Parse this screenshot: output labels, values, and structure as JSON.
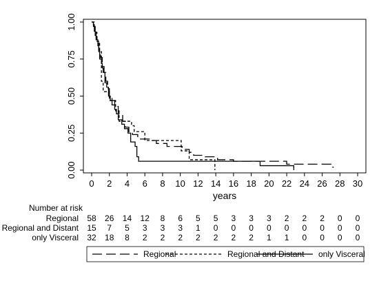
{
  "chart_data": {
    "type": "line",
    "title": "",
    "xlabel": "years",
    "ylabel": "",
    "xlim": [
      0,
      30
    ],
    "ylim": [
      0,
      1
    ],
    "x_ticks": [
      0,
      2,
      4,
      6,
      8,
      10,
      12,
      14,
      16,
      18,
      20,
      22,
      24,
      26,
      28,
      30
    ],
    "y_ticks": [
      "0.00",
      "0.25",
      "0.50",
      "0.75",
      "1.00"
    ],
    "grid": false,
    "legend_position": "bottom",
    "series": [
      {
        "name": "Regional",
        "style": "long-dash",
        "steps": [
          [
            0,
            1.0
          ],
          [
            0.2,
            0.98
          ],
          [
            0.3,
            0.95
          ],
          [
            0.5,
            0.9
          ],
          [
            0.6,
            0.86
          ],
          [
            0.8,
            0.8
          ],
          [
            1.0,
            0.76
          ],
          [
            1.2,
            0.7
          ],
          [
            1.4,
            0.66
          ],
          [
            1.6,
            0.6
          ],
          [
            1.8,
            0.55
          ],
          [
            2.0,
            0.5
          ],
          [
            2.3,
            0.47
          ],
          [
            2.6,
            0.43
          ],
          [
            3.0,
            0.38
          ],
          [
            3.5,
            0.33
          ],
          [
            3.8,
            0.29
          ],
          [
            4.2,
            0.26
          ],
          [
            4.6,
            0.24
          ],
          [
            5.2,
            0.21
          ],
          [
            6.8,
            0.2
          ],
          [
            7.3,
            0.18
          ],
          [
            8.5,
            0.16
          ],
          [
            10.2,
            0.14
          ],
          [
            11.0,
            0.12
          ],
          [
            11.5,
            0.1
          ],
          [
            12.5,
            0.09
          ],
          [
            14.2,
            0.07
          ],
          [
            16.0,
            0.06
          ],
          [
            22.0,
            0.04
          ],
          [
            27.0,
            0.02
          ]
        ],
        "end_x": 27.3
      },
      {
        "name": "Regional and Distant",
        "style": "short-dash",
        "steps": [
          [
            0,
            1.0
          ],
          [
            0.3,
            0.93
          ],
          [
            0.6,
            0.87
          ],
          [
            0.9,
            0.8
          ],
          [
            1.1,
            0.6
          ],
          [
            1.3,
            0.53
          ],
          [
            2.0,
            0.47
          ],
          [
            2.7,
            0.4
          ],
          [
            3.1,
            0.33
          ],
          [
            4.5,
            0.3
          ],
          [
            4.8,
            0.26
          ],
          [
            6.0,
            0.2
          ],
          [
            10.1,
            0.13
          ],
          [
            11.0,
            0.07
          ],
          [
            13.9,
            0.0
          ]
        ],
        "end_x": 13.9
      },
      {
        "name": "only Visceral",
        "style": "solid",
        "steps": [
          [
            0,
            1.0
          ],
          [
            0.2,
            0.97
          ],
          [
            0.4,
            0.91
          ],
          [
            0.5,
            0.88
          ],
          [
            0.7,
            0.84
          ],
          [
            0.8,
            0.81
          ],
          [
            0.9,
            0.75
          ],
          [
            1.1,
            0.72
          ],
          [
            1.2,
            0.69
          ],
          [
            1.3,
            0.66
          ],
          [
            1.5,
            0.59
          ],
          [
            1.7,
            0.56
          ],
          [
            1.9,
            0.5
          ],
          [
            2.1,
            0.47
          ],
          [
            2.3,
            0.44
          ],
          [
            2.6,
            0.41
          ],
          [
            2.8,
            0.38
          ],
          [
            3.0,
            0.34
          ],
          [
            3.4,
            0.31
          ],
          [
            3.7,
            0.28
          ],
          [
            4.1,
            0.25
          ],
          [
            4.4,
            0.19
          ],
          [
            4.9,
            0.16
          ],
          [
            5.1,
            0.09
          ],
          [
            5.3,
            0.06
          ],
          [
            19.0,
            0.03
          ],
          [
            22.8,
            0.0
          ]
        ],
        "end_x": 22.8
      }
    ],
    "risk_table": {
      "heading": "Number at risk",
      "columns_at_x": [
        0,
        2,
        4,
        6,
        8,
        10,
        12,
        14,
        16,
        18,
        20,
        22,
        24,
        26,
        28,
        30
      ],
      "rows": [
        {
          "label": "Regional",
          "values": [
            "58",
            "26",
            "14",
            "12",
            "8",
            "6",
            "5",
            "5",
            "3",
            "3",
            "3",
            "2",
            "2",
            "2",
            "0",
            "0"
          ]
        },
        {
          "label": "Regional and Distant",
          "values": [
            "15",
            "7",
            "5",
            "3",
            "3",
            "3",
            "1",
            "0",
            "0",
            "0",
            "0",
            "0",
            "0",
            "0",
            "0",
            "0"
          ]
        },
        {
          "label": "only Visceral",
          "values": [
            "32",
            "18",
            "8",
            "2",
            "2",
            "2",
            "2",
            "2",
            "2",
            "2",
            "1",
            "1",
            "0",
            "0",
            "0",
            "0"
          ]
        }
      ]
    }
  }
}
